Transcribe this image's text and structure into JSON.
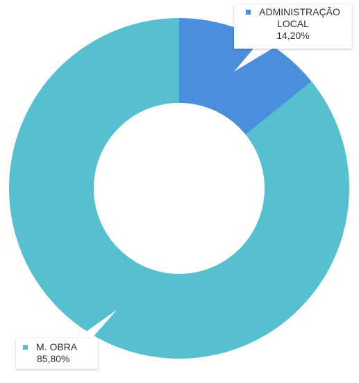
{
  "chart_data": {
    "type": "pie",
    "variant": "donut",
    "title": "",
    "slices": [
      {
        "label_lines": [
          "ADMINISTRAÇÃO",
          "LOCAL"
        ],
        "value": 14.2,
        "value_label": "14,20%",
        "color": "#4a8fdc"
      },
      {
        "label_lines": [
          "M. OBRA"
        ],
        "value": 85.8,
        "value_label": "85,80%",
        "color": "#56c0cf"
      }
    ],
    "legend": "callouts"
  }
}
